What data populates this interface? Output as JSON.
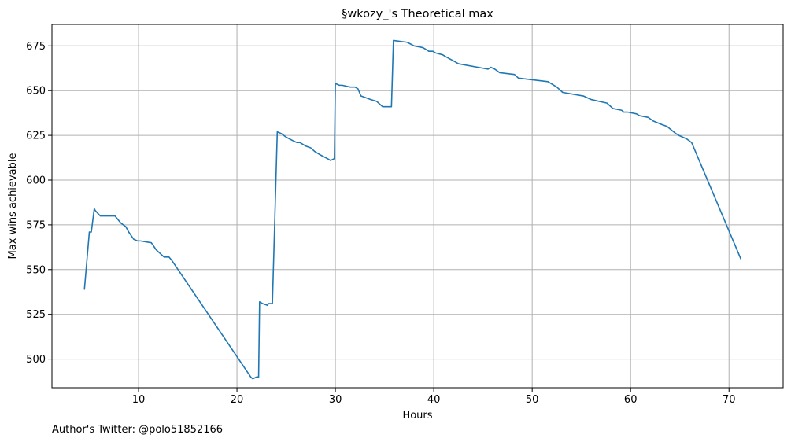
{
  "chart_data": {
    "type": "line",
    "title": "§wkozy_'s Theoretical max",
    "xlabel": "Hours",
    "ylabel": "Max wins achievable",
    "footer": "Author's Twitter: @polo51852166",
    "xlim": [
      1.2,
      75.5
    ],
    "ylim": [
      484,
      687
    ],
    "xticks": [
      10,
      20,
      30,
      40,
      50,
      60,
      70
    ],
    "yticks": [
      500,
      525,
      550,
      575,
      600,
      625,
      650,
      675
    ],
    "grid": true,
    "series": [
      {
        "color": "#1f77b4",
        "x": [
          4.5,
          5.0,
          5.2,
          5.5,
          5.6,
          6.1,
          7.6,
          8.2,
          8.7,
          9.0,
          9.5,
          9.9,
          10.2,
          11.3,
          11.8,
          12.0,
          12.4,
          12.6,
          13.1,
          13.4,
          21.4,
          21.6,
          22.0,
          22.2,
          22.3,
          22.6,
          23.1,
          23.2,
          23.6,
          24.1,
          24.5,
          25.0,
          25.7,
          26.1,
          26.4,
          27.0,
          27.5,
          27.9,
          28.5,
          29.2,
          29.5,
          29.9,
          30.0,
          30.4,
          30.7,
          31.5,
          32.0,
          32.3,
          32.6,
          33.1,
          33.6,
          34.2,
          34.8,
          35.1,
          35.7,
          35.9,
          37.3,
          38.0,
          38.9,
          39.2,
          39.5,
          39.9,
          40.2,
          40.9,
          41.2,
          42.2,
          42.5,
          45.5,
          45.8,
          46.2,
          46.7,
          48.2,
          48.6,
          51.6,
          52.5,
          53.1,
          55.2,
          56.0,
          57.6,
          58.2,
          59.1,
          59.3,
          59.7,
          60.6,
          60.9,
          61.8,
          62.3,
          63.2,
          63.7,
          64.6,
          64.9,
          65.7,
          66.2,
          71.2
        ],
        "y": [
          539,
          571,
          571,
          584,
          583,
          580,
          580,
          576,
          574,
          571,
          567,
          566,
          566,
          565,
          561,
          560,
          558,
          557,
          557,
          555,
          490,
          489,
          490,
          490,
          532,
          531,
          530,
          531,
          531,
          627,
          626,
          624,
          622,
          621,
          621,
          619,
          618,
          616,
          614,
          612,
          611,
          612,
          654,
          653,
          653,
          652,
          652,
          651,
          647,
          646,
          645,
          644,
          641,
          641,
          641,
          678,
          677,
          675,
          674,
          673,
          672,
          672,
          671,
          670,
          669,
          666,
          665,
          662,
          663,
          662,
          660,
          659,
          657,
          655,
          652,
          649,
          647,
          645,
          643,
          640,
          639,
          638,
          638,
          637,
          636,
          635,
          633,
          631,
          630,
          626,
          625,
          623,
          621,
          556
        ]
      }
    ]
  }
}
